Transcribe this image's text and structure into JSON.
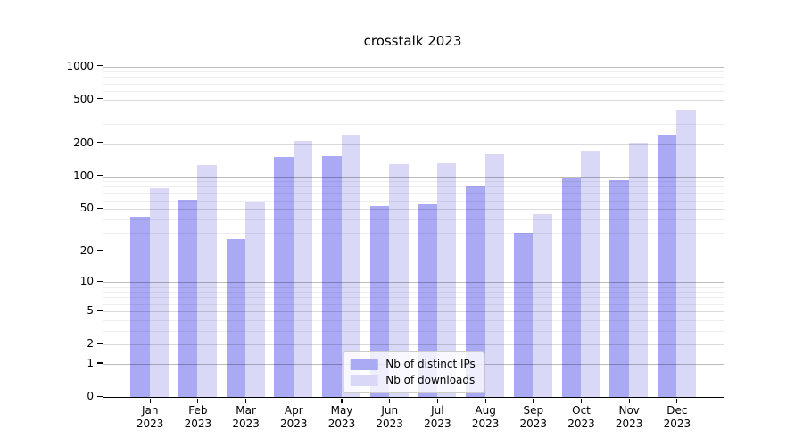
{
  "chart_data": {
    "type": "bar",
    "title": "crosstalk 2023",
    "categories": [
      "Jan 2023",
      "Feb 2023",
      "Mar 2023",
      "Apr 2023",
      "May 2023",
      "Jun 2023",
      "Jul 2023",
      "Aug 2023",
      "Sep 2023",
      "Oct 2023",
      "Nov 2023",
      "Dec 2023"
    ],
    "series": [
      {
        "name": "Nb of distinct IPs",
        "color": "#a9a9f4",
        "values": [
          42,
          61,
          26,
          151,
          153,
          53,
          55,
          82,
          30,
          97,
          92,
          239
        ]
      },
      {
        "name": "Nb of downloads",
        "color": "#d9d9f7",
        "values": [
          78,
          127,
          58,
          212,
          238,
          129,
          132,
          158,
          45,
          170,
          201,
          403
        ]
      }
    ],
    "xlabel": "",
    "ylabel": "",
    "yscale": "log1p",
    "yticks": [
      0,
      1,
      2,
      5,
      10,
      20,
      50,
      100,
      200,
      500,
      1000
    ],
    "ylim": [
      0,
      1280
    ],
    "grid": "both",
    "legend_position": "lower center"
  },
  "grid_values": {
    "major": [
      1,
      10,
      100,
      1000
    ],
    "mid": [
      2,
      5,
      20,
      50,
      200,
      500
    ],
    "minor": [
      3,
      4,
      6,
      7,
      8,
      9,
      30,
      40,
      60,
      70,
      80,
      90,
      300,
      400,
      600,
      700,
      800,
      900
    ]
  },
  "colors": {
    "grid_major": "#bdbdbd",
    "grid_mid": "#dadada",
    "grid_minor": "#eeeeee",
    "frame": "#000000",
    "background": "#ffffff"
  }
}
